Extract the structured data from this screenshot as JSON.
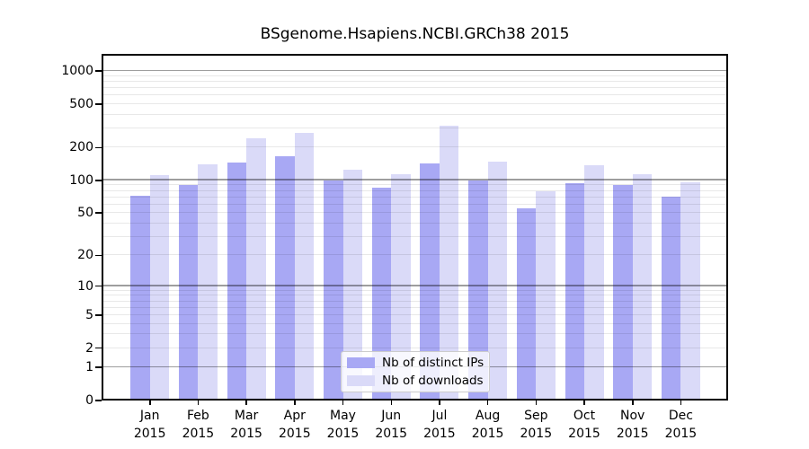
{
  "title": "BSgenome.Hsapiens.NCBI.GRCh38 2015",
  "chart_data": {
    "type": "bar",
    "title": "BSgenome.Hsapiens.NCBI.GRCh38 2015",
    "scale": "log1p",
    "categories": [
      "Jan",
      "Feb",
      "Mar",
      "Apr",
      "May",
      "Jun",
      "Jul",
      "Aug",
      "Sep",
      "Oct",
      "Nov",
      "Dec"
    ],
    "x_sublabel": "2015",
    "series": [
      {
        "name": "Nb of distinct IPs",
        "color": "#a8a8f4",
        "values": [
          72,
          90,
          146,
          168,
          99,
          86,
          144,
          100,
          55,
          94,
          90,
          71
        ]
      },
      {
        "name": "Nb of downloads",
        "color": "#dadaf8",
        "values": [
          111,
          140,
          245,
          270,
          125,
          113,
          320,
          148,
          79,
          139,
          115,
          96
        ]
      }
    ],
    "yticks": [
      0,
      1,
      2,
      5,
      10,
      20,
      50,
      100,
      200,
      500,
      1000
    ],
    "ylim": [
      0,
      1430
    ],
    "grid": {
      "major": [
        1,
        10,
        100,
        1000
      ],
      "minor": [
        2,
        3,
        4,
        5,
        6,
        7,
        8,
        9,
        20,
        30,
        40,
        50,
        60,
        70,
        80,
        90,
        200,
        300,
        400,
        500,
        600,
        700,
        800,
        900
      ]
    },
    "legend_position": "lower center",
    "background_color": "#ffffff",
    "text_color": "#000000"
  }
}
